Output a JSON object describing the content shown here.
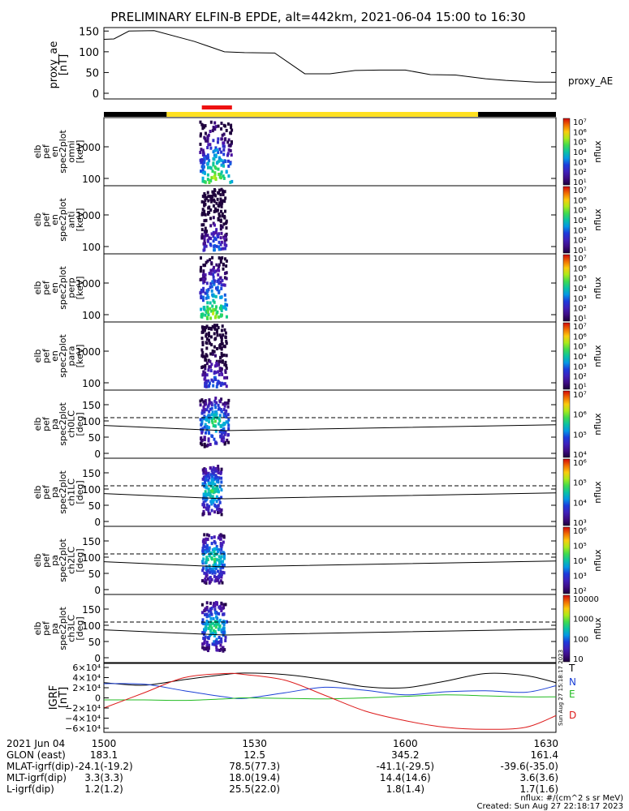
{
  "title": "PRELIMINARY ELFIN-B EPDE, alt=442km, 2021-06-04 15:00 to 16:30",
  "panels": [
    {
      "ylabel": [
        "proxy_ae",
        "[nT]"
      ],
      "ticks": [
        "150",
        "100",
        "50",
        "0"
      ],
      "right_label": "proxy_AE"
    },
    {
      "ylabel": [
        "elb",
        "pef",
        "en",
        "spec2plot",
        "omni",
        "[keV]"
      ],
      "ticks": [
        "1000",
        "100"
      ],
      "cbar_ticks": [
        "10⁷",
        "10⁶",
        "10⁵",
        "10⁴",
        "10³",
        "10²",
        "10¹"
      ],
      "cbar_label": "nflux"
    },
    {
      "ylabel": [
        "elb",
        "pef",
        "en",
        "spec2plot",
        "anti",
        "[keV]"
      ],
      "ticks": [
        "1000",
        "100"
      ],
      "cbar_ticks": [
        "10⁷",
        "10⁶",
        "10⁵",
        "10⁴",
        "10³",
        "10²",
        "10¹"
      ],
      "cbar_label": "nflux"
    },
    {
      "ylabel": [
        "elb",
        "pef",
        "en",
        "spec2plot",
        "perp",
        "[keV]"
      ],
      "ticks": [
        "1000",
        "100"
      ],
      "cbar_ticks": [
        "10⁷",
        "10⁶",
        "10⁵",
        "10⁴",
        "10³",
        "10²",
        "10¹"
      ],
      "cbar_label": "nflux"
    },
    {
      "ylabel": [
        "elb",
        "pef",
        "en",
        "spec2plot",
        "para",
        "[keV]"
      ],
      "ticks": [
        "1000",
        "100"
      ],
      "cbar_ticks": [
        "10⁷",
        "10⁶",
        "10⁵",
        "10⁴",
        "10³",
        "10²",
        "10¹"
      ],
      "cbar_label": "nflux"
    },
    {
      "ylabel": [
        "elb",
        "pef",
        "pa",
        "spec2plot",
        "ch0LC",
        "[deg]"
      ],
      "ticks": [
        "150",
        "100",
        "50",
        "0"
      ],
      "cbar_ticks": [
        "10⁷",
        "10⁶",
        "10⁵",
        "10⁴"
      ],
      "cbar_label": "nflux"
    },
    {
      "ylabel": [
        "elb",
        "pef",
        "pa",
        "spec2plot",
        "ch1LC",
        "[deg]"
      ],
      "ticks": [
        "150",
        "100",
        "50",
        "0"
      ],
      "cbar_ticks": [
        "10⁶",
        "10⁵",
        "10⁴",
        "10³"
      ],
      "cbar_label": "nflux"
    },
    {
      "ylabel": [
        "elb",
        "pef",
        "pa",
        "spec2plot",
        "ch2LC",
        "[deg]"
      ],
      "ticks": [
        "150",
        "100",
        "50",
        "0"
      ],
      "cbar_ticks": [
        "10⁶",
        "10⁵",
        "10⁴",
        "10³",
        "10²"
      ],
      "cbar_label": "nflux"
    },
    {
      "ylabel": [
        "elb",
        "pef",
        "pa",
        "spec2plot",
        "ch3LC",
        "[deg]"
      ],
      "ticks": [
        "150",
        "100",
        "50",
        "0"
      ],
      "cbar_ticks": [
        "10000",
        "1000",
        "100",
        "10"
      ],
      "cbar_label": "nflux"
    },
    {
      "ylabel": [
        "IGRF",
        "[nT]"
      ],
      "ticks": [
        "6×10⁴",
        "4×10⁴",
        "2×10⁴",
        "0",
        "−2×10⁴",
        "−4×10⁴",
        "−6×10⁴"
      ],
      "legend": [
        "T",
        "N",
        "E",
        "D"
      ],
      "side_note": "Sun Aug 27 15:18:17 2023"
    }
  ],
  "footer": {
    "rows": [
      {
        "label": "2021 Jun 04",
        "values": [
          "1500",
          "1530",
          "1600",
          "1630"
        ]
      },
      {
        "label": "GLON (east)",
        "values": [
          "183.1",
          "12.5",
          "345.2",
          "161.4"
        ]
      },
      {
        "label": "MLAT-igrf(dip)",
        "values": [
          "-24.1(-19.2)",
          "78.5(77.3)",
          "-41.1(-29.5)",
          "-39.6(-35.0)"
        ]
      },
      {
        "label": "MLT-igrf(dip)",
        "values": [
          "3.3(3.3)",
          "18.0(19.4)",
          "14.4(14.6)",
          "3.6(3.6)"
        ]
      },
      {
        "label": "L-igrf(dip)",
        "values": [
          "1.2(1.2)",
          "25.5(22.0)",
          "1.8(1.4)",
          "1.7(1.6)"
        ]
      }
    ],
    "note1": "nflux: #/(cm^2 s sr MeV)",
    "note2": "Created: Sun Aug 27 22:18:17 2023"
  },
  "colors": {
    "bar_black": "#000000",
    "bar_yellow": "#ffe020",
    "bar_red": "#ee1111",
    "line_T": "#000000",
    "line_N": "#1a3fd6",
    "line_E": "#22bb22",
    "line_D": "#dd1a1a"
  },
  "chart_data": [
    {
      "type": "line",
      "title": "proxy_ae",
      "x_unit": "minutes since 15:00",
      "xlim": [
        0,
        90
      ],
      "ylim": [
        0,
        160
      ],
      "x": [
        0,
        2,
        5,
        10,
        18,
        24,
        28,
        34,
        40,
        45,
        50,
        55,
        60,
        65,
        70,
        76,
        80,
        86,
        90
      ],
      "values": [
        130,
        131,
        150,
        151,
        125,
        100,
        98,
        97,
        47,
        47,
        55,
        56,
        56,
        45,
        44,
        35,
        31,
        27,
        27
      ],
      "ylabel": "proxy_ae [nT]"
    },
    {
      "type": "timeline",
      "segments": [
        {
          "start": 0,
          "end": 12.5,
          "color": "black"
        },
        {
          "start": 12.5,
          "end": 74.5,
          "color": "yellow"
        },
        {
          "start": 74.5,
          "end": 90,
          "color": "black"
        }
      ],
      "science_zone": [
        19.5,
        25.5
      ]
    },
    {
      "type": "heatmap",
      "panel": "en omni",
      "ylabel": "[keV]",
      "y_scale": "log",
      "ylim": [
        60,
        7000
      ],
      "colorbar_range": [
        10,
        10000000
      ],
      "active_time": [
        19.2,
        25.5
      ]
    },
    {
      "type": "heatmap",
      "panel": "en anti",
      "y_scale": "log",
      "ylim": [
        60,
        7000
      ],
      "colorbar_range": [
        10,
        10000000
      ],
      "active_time": [
        19.5,
        24.5
      ]
    },
    {
      "type": "heatmap",
      "panel": "en perp",
      "y_scale": "log",
      "ylim": [
        60,
        7000
      ],
      "colorbar_range": [
        10,
        10000000
      ],
      "active_time": [
        19.2,
        24.5
      ]
    },
    {
      "type": "heatmap",
      "panel": "en para",
      "y_scale": "log",
      "ylim": [
        60,
        7000
      ],
      "colorbar_range": [
        10,
        10000000
      ],
      "active_time": [
        19.5,
        24.5
      ]
    },
    {
      "type": "heatmap",
      "panel": "pa ch0LC",
      "ylabel": "[deg]",
      "ylim": [
        0,
        180
      ],
      "colorbar_range": [
        1000,
        10000000
      ],
      "active_time": [
        19.2,
        25.0
      ],
      "reference_lines": {
        "solid": {
          "x": [
            0,
            24,
            90
          ],
          "y": [
            86,
            70,
            88
          ]
        },
        "dashed": {
          "x": [
            0,
            90
          ],
          "y": [
            110,
            110
          ]
        }
      }
    },
    {
      "type": "heatmap",
      "panel": "pa ch1LC",
      "ylim": [
        0,
        180
      ],
      "colorbar_range": [
        1000,
        1000000
      ],
      "active_time": [
        19.6,
        23.5
      ],
      "reference_lines": {
        "solid": {
          "x": [
            0,
            24,
            90
          ],
          "y": [
            86,
            70,
            88
          ]
        },
        "dashed": {
          "x": [
            0,
            90
          ],
          "y": [
            110,
            110
          ]
        }
      }
    },
    {
      "type": "heatmap",
      "panel": "pa ch2LC",
      "ylim": [
        0,
        180
      ],
      "colorbar_range": [
        100,
        1000000
      ],
      "active_time": [
        19.6,
        24.0
      ],
      "reference_lines": {
        "solid": {
          "x": [
            0,
            24,
            90
          ],
          "y": [
            86,
            70,
            88
          ]
        },
        "dashed": {
          "x": [
            0,
            90
          ],
          "y": [
            110,
            110
          ]
        }
      }
    },
    {
      "type": "heatmap",
      "panel": "pa ch3LC",
      "ylim": [
        0,
        180
      ],
      "colorbar_range": [
        10,
        10000
      ],
      "active_time": [
        19.6,
        24.5
      ],
      "reference_lines": {
        "solid": {
          "x": [
            0,
            24,
            90
          ],
          "y": [
            86,
            70,
            88
          ]
        },
        "dashed": {
          "x": [
            0,
            90
          ],
          "y": [
            110,
            110
          ]
        }
      }
    },
    {
      "type": "line",
      "title": "IGRF",
      "ylabel": "IGRF [nT]",
      "xlim": [
        0,
        90
      ],
      "ylim": [
        -68000,
        68000
      ],
      "x": [
        0,
        8,
        16,
        24,
        28,
        36,
        44,
        52,
        60,
        68,
        76,
        84,
        90
      ],
      "series": [
        {
          "name": "T",
          "values": [
            30000,
            25000,
            36000,
            46000,
            49000,
            46000,
            36000,
            22000,
            20000,
            33000,
            48000,
            44000,
            30000
          ]
        },
        {
          "name": "N",
          "values": [
            28000,
            27000,
            14000,
            2000,
            -1000,
            10000,
            21000,
            15000,
            6000,
            12000,
            14000,
            11000,
            24000
          ]
        },
        {
          "name": "E",
          "values": [
            -4000,
            -4000,
            -5000,
            -2000,
            0,
            -1000,
            -2000,
            0,
            3000,
            6000,
            4000,
            2000,
            2000
          ]
        },
        {
          "name": "D",
          "values": [
            -20000,
            10000,
            40000,
            48000,
            46000,
            35000,
            5000,
            -26000,
            -45000,
            -58000,
            -62000,
            -58000,
            -35000
          ]
        }
      ]
    }
  ]
}
